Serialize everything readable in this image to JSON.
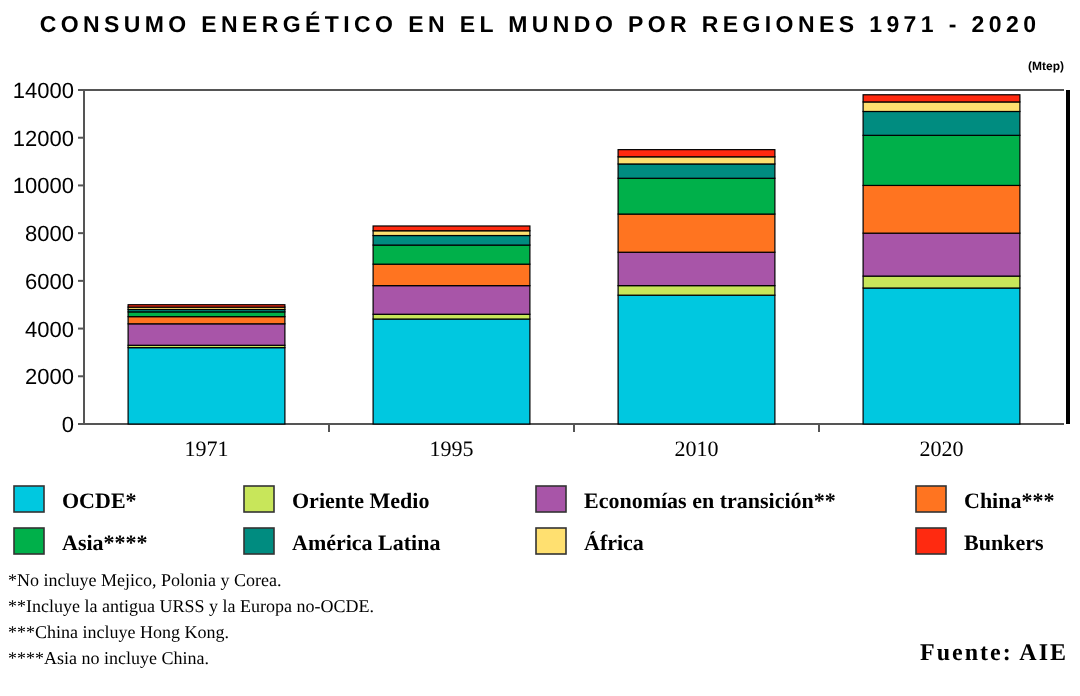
{
  "chart_data": {
    "type": "bar",
    "stacked": true,
    "title": "CONSUMO ENERGÉTICO EN EL MUNDO POR REGIONES 1971 - 2020",
    "ylabel": "(Mtep)",
    "categories": [
      "1971",
      "1995",
      "2010",
      "2020"
    ],
    "series": [
      {
        "name": "OCDE*",
        "color": "#00c8e0",
        "values": [
          3200,
          4400,
          5400,
          5700
        ]
      },
      {
        "name": "Oriente Medio",
        "color": "#c8e65a",
        "values": [
          100,
          200,
          400,
          500
        ]
      },
      {
        "name": "Economías en transición**",
        "color": "#a855a8",
        "values": [
          900,
          1200,
          1400,
          1800
        ]
      },
      {
        "name": "China***",
        "color": "#ff7420",
        "values": [
          300,
          900,
          1600,
          2000
        ]
      },
      {
        "name": "Asia****",
        "color": "#00b04a",
        "values": [
          200,
          800,
          1500,
          2100
        ]
      },
      {
        "name": "América Latina",
        "color": "#008c80",
        "values": [
          100,
          400,
          600,
          1000
        ]
      },
      {
        "name": "África",
        "color": "#ffe070",
        "values": [
          100,
          200,
          300,
          400
        ]
      },
      {
        "name": "Bunkers",
        "color": "#ff2a10",
        "values": [
          100,
          200,
          300,
          300
        ]
      }
    ],
    "ylim": [
      0,
      14000
    ],
    "yticks": [
      0,
      2000,
      4000,
      6000,
      8000,
      10000,
      12000,
      14000
    ],
    "legend": "bottom",
    "annotations": [
      "*No incluye Mejico, Polonia y Corea.",
      "**Incluye la antigua URSS y la Europa no-OCDE.",
      "***China incluye Hong Kong.",
      "****Asia no incluye China.",
      "Fuente: AIE"
    ]
  }
}
